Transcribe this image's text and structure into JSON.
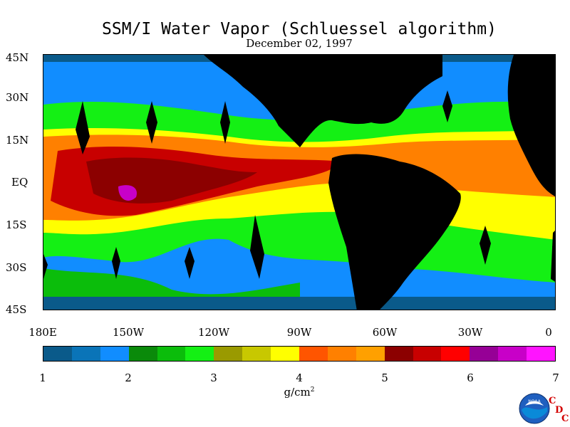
{
  "title": "SSM/I Water Vapor (Schluessel algorithm)",
  "date": "December 02, 1997",
  "lat_labels": [
    "45N",
    "30N",
    "15N",
    "EQ",
    "15S",
    "30S",
    "45S"
  ],
  "lon_labels": [
    "180E",
    "150W",
    "120W",
    "90W",
    "60W",
    "30W",
    "0"
  ],
  "colorbar": {
    "colors": [
      "#0a5a8a",
      "#0a74b8",
      "#118dff",
      "#0a8a0a",
      "#0bbd0b",
      "#14f014",
      "#9a9a00",
      "#c8c800",
      "#ffff00",
      "#ff5500",
      "#ff8000",
      "#ffa000",
      "#8c0000",
      "#c80000",
      "#ff0000",
      "#960096",
      "#c800c8",
      "#ff14ff"
    ],
    "tick_labels": [
      "1",
      "2",
      "3",
      "4",
      "5",
      "6",
      "7"
    ],
    "units": "g/cm",
    "units_exponent": "2",
    "range": [
      1,
      7
    ]
  },
  "logo": {
    "icon": "noaa-logo-icon",
    "text": "NOAA",
    "cdc_letters": [
      "C",
      "D",
      "C"
    ]
  },
  "map": {
    "lon_range": [
      -180,
      0
    ],
    "lat_range": [
      -45,
      45
    ],
    "land_color": "#000000"
  }
}
